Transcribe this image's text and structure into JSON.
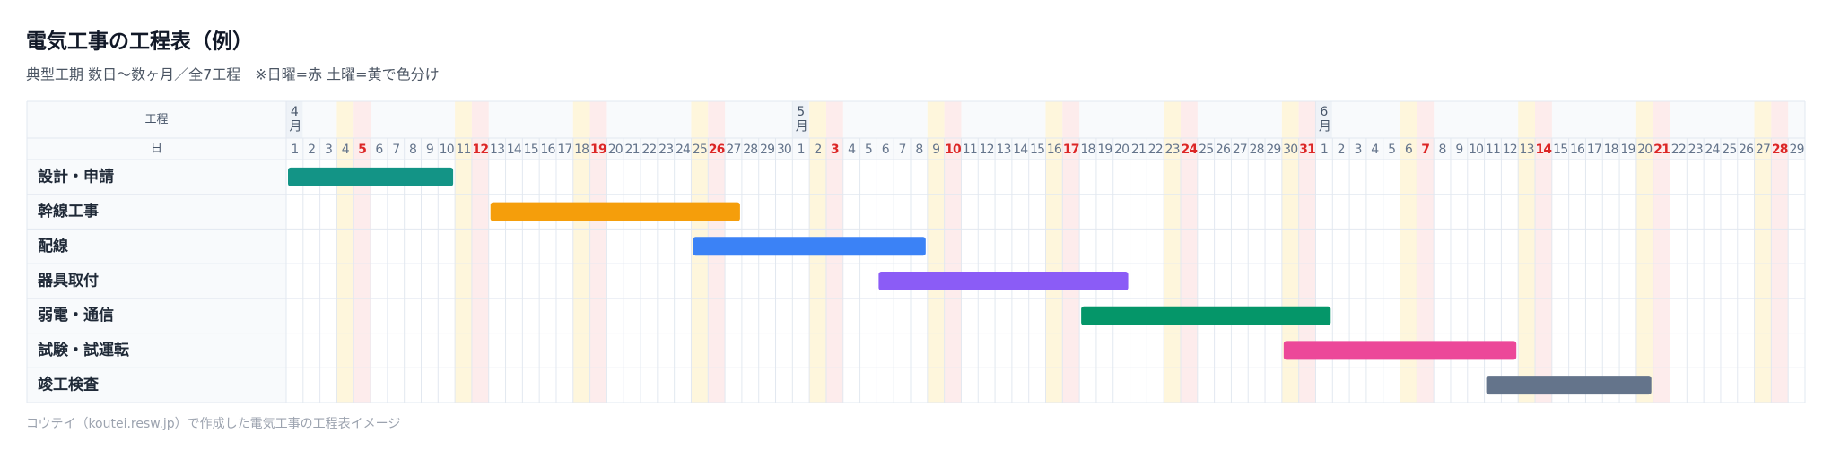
{
  "chart_data": {
    "type": "gantt",
    "title": "電気工事の工程表（例）",
    "subtitle": "典型工期 数日〜数ヶ月／全7工程　※日曜=赤 土曜=黄で色分け",
    "footer": "コウテイ（koutei.resw.jp）で作成した電気工事の工程表イメージ",
    "task_header": "工程",
    "day_header": "日",
    "months": [
      {
        "label": "4月",
        "days": [
          1,
          2,
          3,
          4,
          5,
          6,
          7,
          8,
          9,
          10,
          11,
          12,
          13,
          14,
          15,
          16,
          17,
          18,
          19,
          20,
          21,
          22,
          23,
          24,
          25,
          26,
          27,
          28,
          29,
          30
        ],
        "saturdays": [
          4,
          11,
          18,
          25
        ],
        "sundays": [
          5,
          12,
          19,
          26
        ]
      },
      {
        "label": "5月",
        "days": [
          1,
          2,
          3,
          4,
          5,
          6,
          7,
          8,
          9,
          10,
          11,
          12,
          13,
          14,
          15,
          16,
          17,
          18,
          19,
          20,
          21,
          22,
          23,
          24,
          25,
          26,
          27,
          28,
          29,
          30,
          31
        ],
        "saturdays": [
          2,
          9,
          16,
          23,
          30
        ],
        "sundays": [
          3,
          10,
          17,
          24,
          31
        ]
      },
      {
        "label": "6月",
        "days": [
          1,
          2,
          3,
          4,
          5,
          6,
          7,
          8,
          9,
          10,
          11,
          12,
          13,
          14,
          15,
          16,
          17,
          18,
          19,
          20,
          21,
          22,
          23,
          24,
          25,
          26,
          27,
          28,
          29
        ],
        "saturdays": [
          6,
          13,
          20,
          27
        ],
        "sundays": [
          7,
          14,
          21,
          28
        ]
      }
    ],
    "tasks": [
      {
        "name": "設計・申請",
        "color": "#139486",
        "start": "4-1",
        "end": "4-10"
      },
      {
        "name": "幹線工事",
        "color": "#f59e0b",
        "start": "4-13",
        "end": "4-27"
      },
      {
        "name": "配線",
        "color": "#3b82f6",
        "start": "4-25",
        "end": "5-8"
      },
      {
        "name": "器具取付",
        "color": "#8b5cf6",
        "start": "5-6",
        "end": "5-20"
      },
      {
        "name": "弱電・通信",
        "color": "#059669",
        "start": "5-18",
        "end": "6-1"
      },
      {
        "name": "試験・試運転",
        "color": "#ec4899",
        "start": "5-30",
        "end": "6-12"
      },
      {
        "name": "竣工検査",
        "color": "#64748b",
        "start": "6-11",
        "end": "6-20"
      }
    ],
    "saturday_color": "#fef6dc",
    "sunday_color": "#fdecec",
    "sunday_text_color": "#dc2626",
    "day_text_color": "#64748b"
  }
}
